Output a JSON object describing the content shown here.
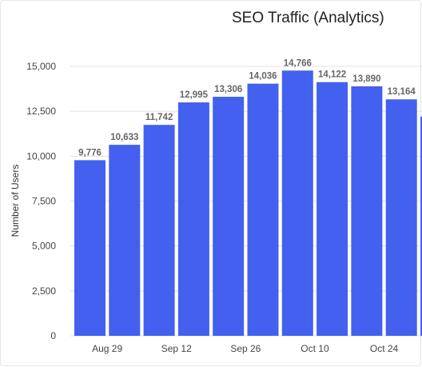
{
  "chart_data": {
    "type": "bar",
    "title": "SEO Traffic (Analytics)",
    "ylabel": "Number of Users",
    "xlabel": "",
    "ylim": [
      0,
      15000
    ],
    "yticks": [
      0,
      2500,
      5000,
      7500,
      10000,
      12500,
      15000
    ],
    "ytick_labels": [
      "0",
      "2,500",
      "5,000",
      "7,500",
      "10,000",
      "12,500",
      "15,000"
    ],
    "grid": true,
    "bar_color": "#4361ee",
    "x_tick_labels": [
      "Aug 29",
      "Sep 12",
      "Sep 26",
      "Oct 10",
      "Oct 24"
    ],
    "values": [
      9776,
      10633,
      11742,
      12995,
      13306,
      14036,
      14766,
      14122,
      13890,
      13164,
      12200
    ],
    "value_labels": [
      "9,776",
      "10,633",
      "11,742",
      "12,995",
      "13,306",
      "14,036",
      "14,766",
      "14,122",
      "13,890",
      "13,164",
      ""
    ]
  }
}
